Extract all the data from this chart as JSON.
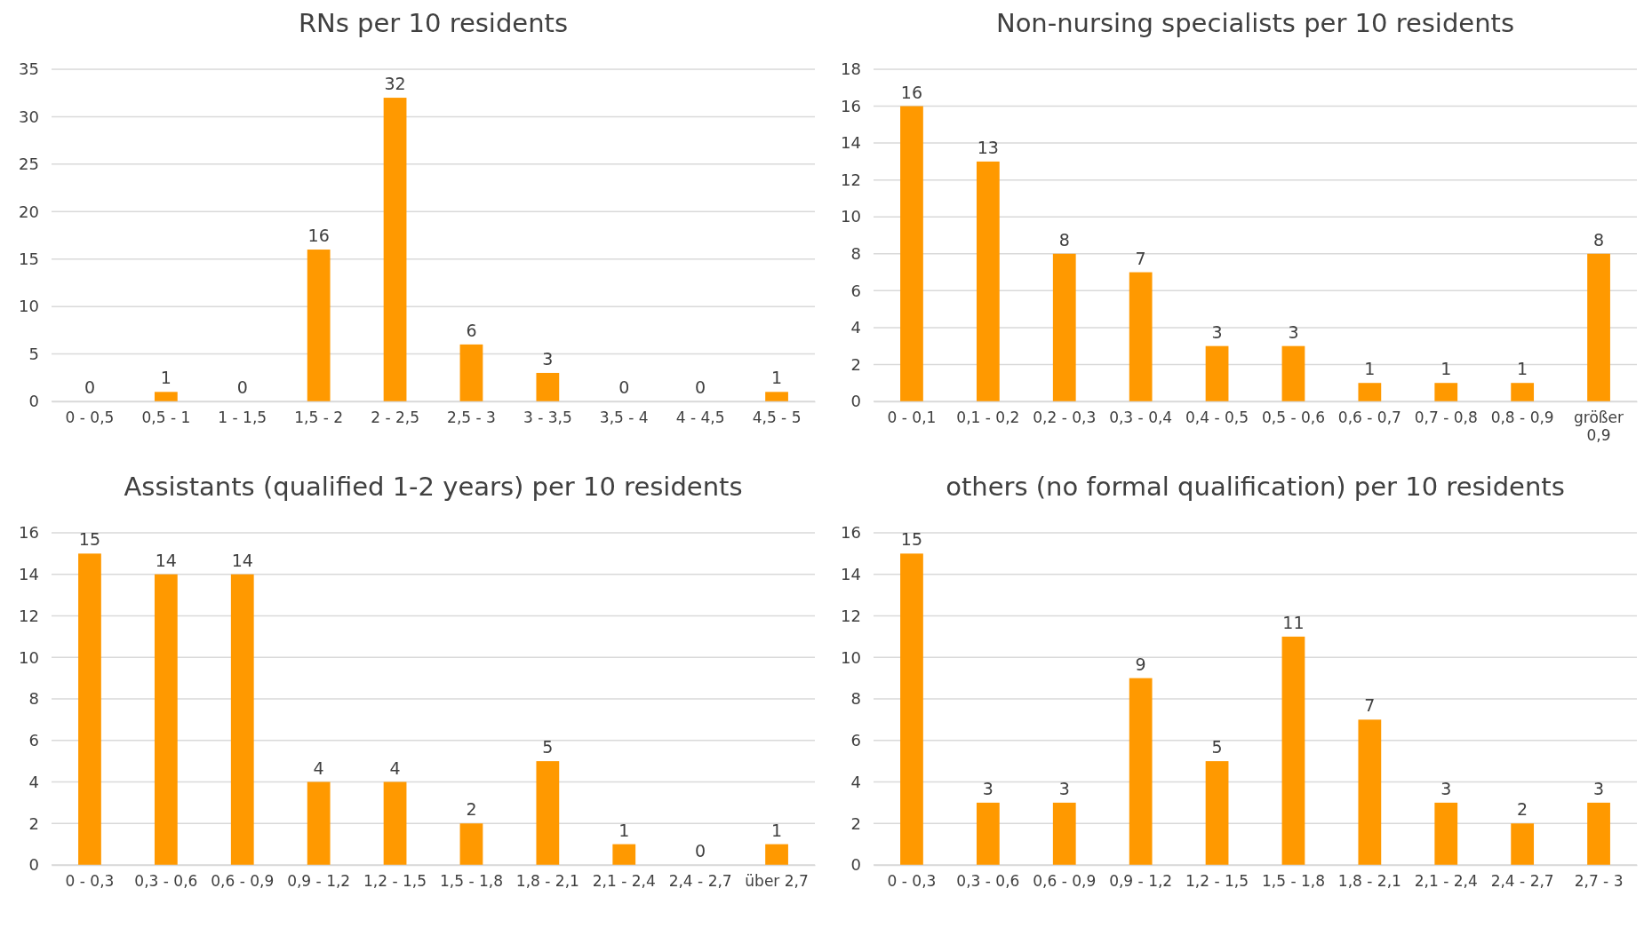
{
  "chart_data": [
    {
      "type": "bar",
      "title": "RNs per 10 residents",
      "categories": [
        "0 - 0,5",
        "0,5 - 1",
        "1 - 1,5",
        "1,5 - 2",
        "2 - 2,5",
        "2,5 - 3",
        "3 - 3,5",
        "3,5 - 4",
        "4 - 4,5",
        "4,5 - 5"
      ],
      "values": [
        0,
        1,
        0,
        16,
        32,
        6,
        3,
        0,
        0,
        1
      ],
      "color": "#ff9900",
      "ylim": [
        0,
        35
      ],
      "yticks": [
        0,
        5,
        10,
        15,
        20,
        25,
        30,
        35
      ],
      "grid": "y",
      "data_labels": true
    },
    {
      "type": "bar",
      "title": "Non-nursing specialists per 10 residents",
      "categories": [
        "0 - 0,1",
        "0,1 - 0,2",
        "0,2 - 0,3",
        "0,3 - 0,4",
        "0,4 - 0,5",
        "0,5 - 0,6",
        "0,6 - 0,7",
        "0,7 - 0,8",
        "0,8 - 0,9",
        "größer 0,9"
      ],
      "values": [
        16,
        13,
        8,
        7,
        3,
        3,
        1,
        1,
        1,
        8
      ],
      "color": "#ff9900",
      "ylim": [
        0,
        18
      ],
      "yticks": [
        0,
        2,
        4,
        6,
        8,
        10,
        12,
        14,
        16,
        18
      ],
      "grid": "y",
      "data_labels": true
    },
    {
      "type": "bar",
      "title": "Assistants (qualified 1-2 years) per 10 residents",
      "categories": [
        "0 - 0,3",
        "0,3 - 0,6",
        "0,6 - 0,9",
        "0,9 - 1,2",
        "1,2 - 1,5",
        "1,5 - 1,8",
        "1,8 - 2,1",
        "2,1 - 2,4",
        "2,4 - 2,7",
        "über 2,7"
      ],
      "values": [
        15,
        14,
        14,
        4,
        4,
        2,
        5,
        1,
        0,
        1
      ],
      "color": "#ff9900",
      "ylim": [
        0,
        16
      ],
      "yticks": [
        0,
        2,
        4,
        6,
        8,
        10,
        12,
        14,
        16
      ],
      "grid": "y",
      "data_labels": true
    },
    {
      "type": "bar",
      "title": "others (no formal qualification) per 10 residents",
      "categories": [
        "0 - 0,3",
        "0,3 - 0,6",
        "0,6 - 0,9",
        "0,9 - 1,2",
        "1,2 - 1,5",
        "1,5 - 1,8",
        "1,8 - 2,1",
        "2,1 - 2,4",
        "2,4 - 2,7",
        "2,7 - 3"
      ],
      "values": [
        15,
        3,
        3,
        9,
        5,
        11,
        7,
        3,
        2,
        3
      ],
      "color": "#ff9900",
      "ylim": [
        0,
        16
      ],
      "yticks": [
        0,
        2,
        4,
        6,
        8,
        10,
        12,
        14,
        16
      ],
      "grid": "y",
      "data_labels": true
    }
  ]
}
